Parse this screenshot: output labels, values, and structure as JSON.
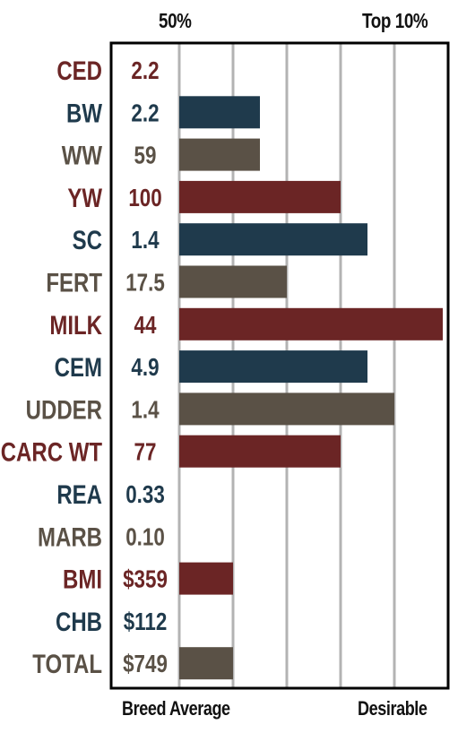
{
  "header": {
    "left": "50%",
    "right": "Top 10%"
  },
  "footer": {
    "left": "Breed Average",
    "right": "Desirable"
  },
  "colors": {
    "red": "#6b2525",
    "blue": "#1f3a4c",
    "gray": "#5a5146"
  },
  "chart_data": {
    "type": "bar",
    "orientation": "horizontal",
    "xlim": [
      0,
      5
    ],
    "rows": [
      {
        "trait": "CED",
        "display": "2.2",
        "level": 0,
        "color": "red"
      },
      {
        "trait": "BW",
        "display": "2.2",
        "level": 1.5,
        "color": "blue"
      },
      {
        "trait": "WW",
        "display": "59",
        "level": 1.5,
        "color": "gray"
      },
      {
        "trait": "YW",
        "display": "100",
        "level": 3,
        "color": "red"
      },
      {
        "trait": "SC",
        "display": "1.4",
        "level": 3.5,
        "color": "blue"
      },
      {
        "trait": "FERT",
        "display": "17.5",
        "level": 2,
        "color": "gray"
      },
      {
        "trait": "MILK",
        "display": "44",
        "level": 4.9,
        "color": "red"
      },
      {
        "trait": "CEM",
        "display": "4.9",
        "level": 3.5,
        "color": "blue"
      },
      {
        "trait": "UDDER",
        "display": "1.4",
        "level": 4,
        "color": "gray"
      },
      {
        "trait": "CARC WT",
        "display": "77",
        "level": 3,
        "color": "red"
      },
      {
        "trait": "REA",
        "display": "0.33",
        "level": 0,
        "color": "blue"
      },
      {
        "trait": "MARB",
        "display": "0.10",
        "level": 0,
        "color": "gray"
      },
      {
        "trait": "BMI",
        "display": "$359",
        "level": 1,
        "color": "red"
      },
      {
        "trait": "CHB",
        "display": "$112",
        "level": 0,
        "color": "blue"
      },
      {
        "trait": "TOTAL",
        "display": "$749",
        "level": 1,
        "color": "gray"
      }
    ]
  }
}
